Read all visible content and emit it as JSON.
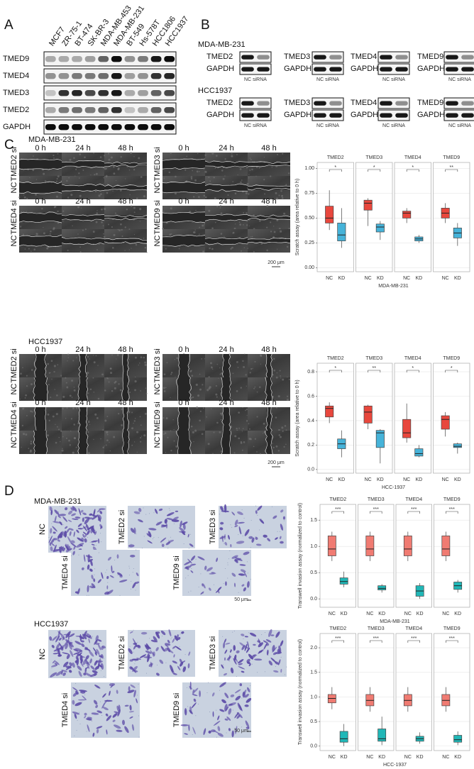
{
  "panel_a": {
    "letter": "A",
    "cell_lines": [
      "MCF7",
      "ZR-75-1",
      "BT-474",
      "SK-BR-3",
      "MDA-MB-453",
      "MDA-MB-231",
      "BT-549",
      "Hs-578T",
      "HCC1806",
      "HCC1937"
    ],
    "proteins": [
      "TMED9",
      "TMED4",
      "TMED3",
      "TMED2",
      "GAPDH"
    ]
  },
  "panel_b": {
    "letter": "B",
    "groups": [
      {
        "cell_line": "MDA-MB-231",
        "blots": [
          {
            "target": "TMED2",
            "control": "GAPDH",
            "lanes": "NC siRNA"
          },
          {
            "target": "TMED3",
            "control": "GAPDH",
            "lanes": "NC siRNA"
          },
          {
            "target": "TMED4",
            "control": "GAPDH",
            "lanes": "NC siRNA"
          },
          {
            "target": "TMED9",
            "control": "GAPDH",
            "lanes": "NC siRNA"
          }
        ]
      },
      {
        "cell_line": "HCC1937",
        "blots": [
          {
            "target": "TMED2",
            "control": "GAPDH",
            "lanes": "NC siRNA"
          },
          {
            "target": "TMED3",
            "control": "GAPDH",
            "lanes": "NC siRNA"
          },
          {
            "target": "TMED4",
            "control": "GAPDH",
            "lanes": "NC siRNA"
          },
          {
            "target": "TMED9",
            "control": "GAPDH",
            "lanes": "NC siRNA"
          }
        ]
      }
    ]
  },
  "panel_c": {
    "letter": "C",
    "sections": [
      {
        "cell_line": "MDA-MB-231",
        "blocks": [
          {
            "times": [
              "0 h",
              "24 h",
              "48 h"
            ],
            "treated": "TMED2 si",
            "control": "NC"
          },
          {
            "times": [
              "0 h",
              "24 h",
              "48 h"
            ],
            "treated": "TMED3 si",
            "control": "NC"
          },
          {
            "times": [
              "0 h",
              "24 h",
              "48 h"
            ],
            "treated": "TMED4 si",
            "control": "NC"
          },
          {
            "times": [
              "0 h",
              "24 h",
              "48 h"
            ],
            "treated": "TMED9 si",
            "control": "NC"
          }
        ],
        "scale": "200 μm",
        "chart": {
          "type": "box",
          "y_label": "Scratch assay (area relative to 0 h)",
          "x_title": "MDA-MB-231",
          "ylim": [
            -0.04,
            1.06
          ],
          "yticks": [
            {
              "value": 0,
              "label": "0.00"
            },
            {
              "value": 0.25,
              "label": "0.25"
            },
            {
              "value": 0.5,
              "label": "0.50"
            },
            {
              "value": 0.75,
              "label": "0.75"
            },
            {
              "value": 1,
              "label": "1.00"
            }
          ],
          "grid": true,
          "facets": [
            {
              "name": "TMED2",
              "significance": "*",
              "groups": [
                "NC",
                "KD"
              ],
              "boxes": [
                {
                  "color": "#e8473d",
                  "whislo": 0.38,
                  "q1": 0.45,
                  "med": 0.5,
                  "q3": 0.62,
                  "whishi": 0.78
                },
                {
                  "color": "#46b3d9",
                  "whislo": 0.2,
                  "q1": 0.27,
                  "med": 0.33,
                  "q3": 0.45,
                  "whishi": 0.6
                }
              ]
            },
            {
              "name": "TMED3",
              "significance": "*",
              "groups": [
                "NC",
                "KD"
              ],
              "boxes": [
                {
                  "color": "#e8473d",
                  "whislo": 0.42,
                  "q1": 0.58,
                  "med": 0.65,
                  "q3": 0.68,
                  "whishi": 0.7
                },
                {
                  "color": "#46b3d9",
                  "whislo": 0.28,
                  "q1": 0.36,
                  "med": 0.41,
                  "q3": 0.44,
                  "whishi": 0.47
                }
              ]
            },
            {
              "name": "TMED4",
              "significance": "*",
              "groups": [
                "NC",
                "KD"
              ],
              "boxes": [
                {
                  "color": "#e8473d",
                  "whislo": 0.45,
                  "q1": 0.5,
                  "med": 0.55,
                  "q3": 0.57,
                  "whishi": 0.6
                },
                {
                  "color": "#46b3d9",
                  "whislo": 0.25,
                  "q1": 0.27,
                  "med": 0.29,
                  "q3": 0.31,
                  "whishi": 0.33
                }
              ]
            },
            {
              "name": "TMED9",
              "significance": "**",
              "groups": [
                "NC",
                "KD"
              ],
              "boxes": [
                {
                  "color": "#e8473d",
                  "whislo": 0.45,
                  "q1": 0.5,
                  "med": 0.55,
                  "q3": 0.6,
                  "whishi": 0.65
                },
                {
                  "color": "#46b3d9",
                  "whislo": 0.22,
                  "q1": 0.3,
                  "med": 0.35,
                  "q3": 0.4,
                  "whishi": 0.45
                }
              ]
            }
          ]
        }
      },
      {
        "cell_line": "HCC1937",
        "blocks": [
          {
            "times": [
              "0 h",
              "24 h",
              "48 h"
            ],
            "treated": "TMED2 si",
            "control": "NC"
          },
          {
            "times": [
              "0 h",
              "24 h",
              "48 h"
            ],
            "treated": "TMED3 si",
            "control": "NC"
          },
          {
            "times": [
              "0 h",
              "24 h",
              "48 h"
            ],
            "treated": "TMED4 si",
            "control": "NC"
          },
          {
            "times": [
              "0 h",
              "24 h",
              "48 h"
            ],
            "treated": "TMED9 si",
            "control": "NC"
          }
        ],
        "scale": "200 μm",
        "chart": {
          "type": "box",
          "y_label": "Scratch assay (area relative to 0 h)",
          "x_title": "HCC-1937",
          "ylim": [
            -0.03,
            0.87
          ],
          "yticks": [
            {
              "value": 0,
              "label": "0.0"
            },
            {
              "value": 0.2,
              "label": "0.2"
            },
            {
              "value": 0.4,
              "label": "0.4"
            },
            {
              "value": 0.6,
              "label": "0.6"
            },
            {
              "value": 0.8,
              "label": "0.8"
            }
          ],
          "grid": true,
          "facets": [
            {
              "name": "TMED2",
              "significance": "*",
              "groups": [
                "NC",
                "KD"
              ],
              "boxes": [
                {
                  "color": "#e8473d",
                  "whislo": 0.38,
                  "q1": 0.43,
                  "med": 0.5,
                  "q3": 0.52,
                  "whishi": 0.55
                },
                {
                  "color": "#46b3d9",
                  "whislo": 0.1,
                  "q1": 0.17,
                  "med": 0.21,
                  "q3": 0.25,
                  "whishi": 0.32
                }
              ]
            },
            {
              "name": "TMED3",
              "significance": "**",
              "groups": [
                "NC",
                "KD"
              ],
              "boxes": [
                {
                  "color": "#e8473d",
                  "whislo": 0.33,
                  "q1": 0.38,
                  "med": 0.47,
                  "q3": 0.52,
                  "whishi": 0.53
                },
                {
                  "color": "#46b3d9",
                  "whislo": 0.05,
                  "q1": 0.18,
                  "med": 0.3,
                  "q3": 0.32,
                  "whishi": 0.33
                }
              ]
            },
            {
              "name": "TMED4",
              "significance": "*",
              "groups": [
                "NC",
                "KD"
              ],
              "boxes": [
                {
                  "color": "#e8473d",
                  "whislo": 0.22,
                  "q1": 0.26,
                  "med": 0.3,
                  "q3": 0.41,
                  "whishi": 0.54
                },
                {
                  "color": "#46b3d9",
                  "whislo": 0.1,
                  "q1": 0.11,
                  "med": 0.13,
                  "q3": 0.17,
                  "whishi": 0.2
                }
              ]
            },
            {
              "name": "TMED9",
              "significance": "*",
              "groups": [
                "NC",
                "KD"
              ],
              "boxes": [
                {
                  "color": "#e8473d",
                  "whislo": 0.27,
                  "q1": 0.33,
                  "med": 0.41,
                  "q3": 0.44,
                  "whishi": 0.47
                },
                {
                  "color": "#46b3d9",
                  "whislo": 0.13,
                  "q1": 0.18,
                  "med": 0.19,
                  "q3": 0.21,
                  "whishi": 0.22
                }
              ]
            }
          ]
        }
      }
    ]
  },
  "panel_d": {
    "letter": "D",
    "sections": [
      {
        "cell_line": "MDA-MB-231",
        "images": [
          "NC",
          "TMED2 si",
          "TMED3 si",
          "TMED4 si",
          "TMED9 si"
        ],
        "scale": "50 μm",
        "chart": {
          "type": "box",
          "y_label": "Transwell invasion assay (normalized to control)",
          "x_title": "MDA-MB-231",
          "ylim": [
            -0.16,
            1.8
          ],
          "yticks": [
            {
              "value": 0,
              "label": "0.0"
            },
            {
              "value": 0.5,
              "label": "0.5"
            },
            {
              "value": 1,
              "label": "1.0"
            },
            {
              "value": 1.5,
              "label": "1.5"
            }
          ],
          "grid": true,
          "facets": [
            {
              "name": "TMED2",
              "significance": "***",
              "groups": [
                "NC",
                "KD"
              ],
              "boxes": [
                {
                  "color": "#f07b72",
                  "whislo": 0.72,
                  "q1": 0.82,
                  "med": 0.95,
                  "q3": 1.2,
                  "whishi": 1.28
                },
                {
                  "color": "#20b7b7",
                  "whislo": 0.22,
                  "q1": 0.28,
                  "med": 0.33,
                  "q3": 0.4,
                  "whishi": 0.52
                }
              ]
            },
            {
              "name": "TMED3",
              "significance": "***",
              "groups": [
                "NC",
                "KD"
              ],
              "boxes": [
                {
                  "color": "#f07b72",
                  "whislo": 0.72,
                  "q1": 0.82,
                  "med": 0.95,
                  "q3": 1.2,
                  "whishi": 1.28
                },
                {
                  "color": "#20b7b7",
                  "whislo": 0.12,
                  "q1": 0.17,
                  "med": 0.2,
                  "q3": 0.25,
                  "whishi": 0.28
                }
              ]
            },
            {
              "name": "TMED4",
              "significance": "***",
              "groups": [
                "NC",
                "KD"
              ],
              "boxes": [
                {
                  "color": "#f07b72",
                  "whislo": 0.72,
                  "q1": 0.82,
                  "med": 0.95,
                  "q3": 1.2,
                  "whishi": 1.28
                },
                {
                  "color": "#20b7b7",
                  "whislo": 0,
                  "q1": 0.05,
                  "med": 0.15,
                  "q3": 0.25,
                  "whishi": 0.3
                }
              ]
            },
            {
              "name": "TMED9",
              "significance": "***",
              "groups": [
                "NC",
                "KD"
              ],
              "boxes": [
                {
                  "color": "#f07b72",
                  "whislo": 0.72,
                  "q1": 0.82,
                  "med": 0.95,
                  "q3": 1.2,
                  "whishi": 1.28
                },
                {
                  "color": "#20b7b7",
                  "whislo": 0.12,
                  "q1": 0.18,
                  "med": 0.25,
                  "q3": 0.32,
                  "whishi": 0.36
                }
              ]
            }
          ]
        }
      },
      {
        "cell_line": "HCC1937",
        "images": [
          "NC",
          "TMED2 si",
          "TMED3 si",
          "TMED4 si",
          "TMED9 si"
        ],
        "scale": "50 μm",
        "chart": {
          "type": "box",
          "y_label": "Transwell invasion assay (normalized to control)",
          "x_title": "HCC-1937",
          "ylim": [
            -0.09,
            2.29
          ],
          "yticks": [
            {
              "value": 0,
              "label": "0.0"
            },
            {
              "value": 0.5,
              "label": "0.5"
            },
            {
              "value": 1,
              "label": "1.0"
            },
            {
              "value": 1.5,
              "label": "1.5"
            },
            {
              "value": 2,
              "label": "2.0"
            }
          ],
          "grid": true,
          "facets": [
            {
              "name": "TMED2",
              "significance": "***",
              "groups": [
                "NC",
                "KD"
              ],
              "boxes": [
                {
                  "color": "#f07b72",
                  "whislo": 0.75,
                  "q1": 0.88,
                  "med": 0.97,
                  "q3": 1.05,
                  "whishi": 1.2
                },
                {
                  "color": "#20b7b7",
                  "whislo": 0,
                  "q1": 0.08,
                  "med": 0.15,
                  "q3": 0.3,
                  "whishi": 0.45
                }
              ]
            },
            {
              "name": "TMED3",
              "significance": "***",
              "groups": [
                "NC",
                "KD"
              ],
              "boxes": [
                {
                  "color": "#f07b72",
                  "whislo": 0.7,
                  "q1": 0.82,
                  "med": 0.93,
                  "q3": 1.05,
                  "whishi": 1.2
                },
                {
                  "color": "#20b7b7",
                  "whislo": 0.02,
                  "q1": 0.1,
                  "med": 0.15,
                  "q3": 0.35,
                  "whishi": 0.6
                }
              ]
            },
            {
              "name": "TMED4",
              "significance": "***",
              "groups": [
                "NC",
                "KD"
              ],
              "boxes": [
                {
                  "color": "#f07b72",
                  "whislo": 0.7,
                  "q1": 0.82,
                  "med": 0.93,
                  "q3": 1.05,
                  "whishi": 1.2
                },
                {
                  "color": "#20b7b7",
                  "whislo": 0.05,
                  "q1": 0.1,
                  "med": 0.15,
                  "q3": 0.2,
                  "whishi": 0.28
                }
              ]
            },
            {
              "name": "TMED9",
              "significance": "***",
              "groups": [
                "NC",
                "KD"
              ],
              "boxes": [
                {
                  "color": "#f07b72",
                  "whislo": 0.7,
                  "q1": 0.82,
                  "med": 0.93,
                  "q3": 1.05,
                  "whishi": 1.2
                },
                {
                  "color": "#20b7b7",
                  "whislo": 0.02,
                  "q1": 0.08,
                  "med": 0.13,
                  "q3": 0.22,
                  "whishi": 0.3
                }
              ]
            }
          ]
        }
      }
    ]
  }
}
